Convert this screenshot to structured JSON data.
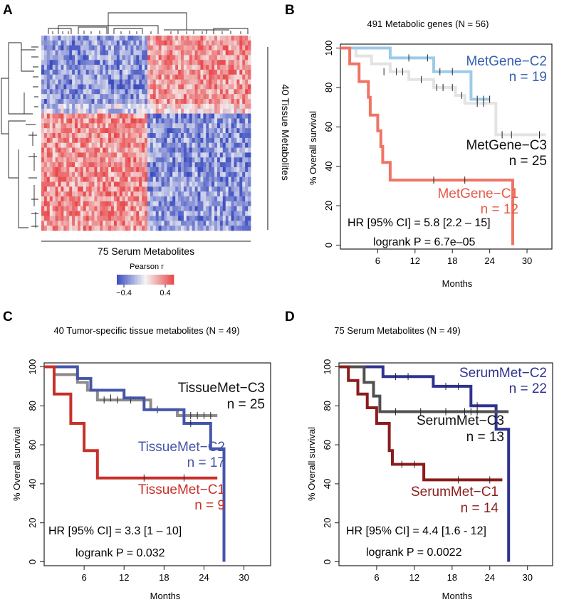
{
  "panel_labels": {
    "a": "A",
    "b": "B",
    "c": "C",
    "d": "D"
  },
  "heatmap": {
    "col_label": "75 Serum Metabolites",
    "row_label": "40 Tissue Metabolites",
    "legend_title": "Pearson r",
    "legend_ticks": [
      "−0.4",
      "0.4"
    ],
    "rows": 40,
    "cols": 75,
    "row_split": 16,
    "col_split": 38,
    "color_low": "#3b4cc0",
    "color_mid": "#f5f5f5",
    "color_high": "#e8474a"
  },
  "chart_data": [
    {
      "type": "line",
      "panel": "B",
      "title": "491 Metabolic genes  (N = 56)",
      "xlabel": "Months",
      "ylabel": "% Overall survival",
      "xlim": [
        0,
        34
      ],
      "ylim": [
        -2,
        102
      ],
      "xticks": [
        6,
        12,
        18,
        24,
        30
      ],
      "yticks": [
        0,
        20,
        40,
        60,
        80,
        100
      ],
      "hr_text": "HR [95% CI] = 5.8 [2.2 – 15]",
      "p_text": "logrank P = 6.7e–05",
      "series": [
        {
          "name": "MetGene−C3",
          "n_label": "n = 25",
          "color": "#e3e3e3",
          "label_color": "#111111",
          "steps": [
            [
              0,
              100
            ],
            [
              2.5,
              96
            ],
            [
              5,
              92
            ],
            [
              8,
              88
            ],
            [
              11,
              84
            ],
            [
              15,
              80
            ],
            [
              18.5,
              76
            ],
            [
              20,
              72
            ],
            [
              25,
              56
            ],
            [
              33,
              56
            ]
          ],
          "censors": [
            [
              7,
              88
            ],
            [
              9,
              88
            ],
            [
              10,
              88
            ],
            [
              13,
              84
            ],
            [
              15.5,
              80
            ],
            [
              16.5,
              80
            ],
            [
              18,
              80
            ],
            [
              19.5,
              76
            ],
            [
              22,
              72
            ],
            [
              23,
              72
            ],
            [
              26,
              56
            ],
            [
              27.5,
              56
            ],
            [
              32,
              56
            ]
          ]
        },
        {
          "name": "MetGene−C2",
          "n_label": "n = 19",
          "color": "#9ccbe8",
          "label_color": "#3660b0",
          "steps": [
            [
              0,
              100
            ],
            [
              8,
              95
            ],
            [
              15,
              88
            ],
            [
              21,
              74
            ],
            [
              24,
              74
            ]
          ],
          "censors": [
            [
              11,
              95
            ],
            [
              14,
              95
            ],
            [
              16,
              88
            ],
            [
              18,
              88
            ],
            [
              22,
              74
            ],
            [
              23,
              74
            ],
            [
              24,
              74
            ]
          ]
        },
        {
          "name": "MetGene−C1",
          "n_label": "n = 12",
          "color": "#f07464",
          "label_color": "#e55a48",
          "steps": [
            [
              0,
              100
            ],
            [
              1.5,
              92
            ],
            [
              3,
              83
            ],
            [
              4.5,
              75
            ],
            [
              4.8,
              66
            ],
            [
              6,
              58
            ],
            [
              6.5,
              50
            ],
            [
              6.8,
              42
            ],
            [
              8,
              33
            ],
            [
              27.7,
              33
            ],
            [
              27.7,
              0
            ]
          ],
          "censors": [
            [
              15,
              33
            ],
            [
              20,
              33
            ]
          ]
        }
      ]
    },
    {
      "type": "line",
      "panel": "C",
      "title": "40 Tumor-specific tissue metabolites (N = 49)",
      "xlabel": "Months",
      "ylabel": "% Overall survival",
      "xlim": [
        0,
        34
      ],
      "ylim": [
        -2,
        102
      ],
      "xticks": [
        6,
        12,
        18,
        24,
        30
      ],
      "yticks": [
        0,
        20,
        40,
        60,
        80,
        100
      ],
      "hr_text": "HR [95% CI] = 3.3 [1 – 10]",
      "p_text": "logrank P = 0.032",
      "series": [
        {
          "name": "TissueMet−C3",
          "n_label": "n = 25",
          "color": "#8c8c8c",
          "label_color": "#111111",
          "steps": [
            [
              0,
              100
            ],
            [
              1.5,
              96
            ],
            [
              5,
              92
            ],
            [
              6.5,
              88
            ],
            [
              8,
              83
            ],
            [
              16,
              78
            ],
            [
              20,
              75
            ],
            [
              26,
              75
            ]
          ],
          "censors": [
            [
              9,
              83
            ],
            [
              11,
              83
            ],
            [
              13,
              83
            ],
            [
              17,
              78
            ],
            [
              21,
              75
            ],
            [
              22,
              75
            ],
            [
              23,
              75
            ],
            [
              24,
              75
            ],
            [
              25,
              75
            ]
          ]
        },
        {
          "name": "TissueMet−C2",
          "n_label": "n = 17",
          "color": "#4555a8",
          "label_color": "#4555a8",
          "steps": [
            [
              0,
              100
            ],
            [
              5,
              94
            ],
            [
              7,
              88
            ],
            [
              12,
              84
            ],
            [
              15,
              78
            ],
            [
              21,
              71
            ],
            [
              25,
              58
            ],
            [
              27,
              58
            ],
            [
              27,
              0
            ]
          ],
          "censors": [
            [
              10,
              84
            ],
            [
              22,
              71
            ]
          ]
        },
        {
          "name": "TissueMet−C1",
          "n_label": "n = 9",
          "color": "#c8302a",
          "label_color": "#c8302a",
          "steps": [
            [
              0,
              100
            ],
            [
              1.5,
              86
            ],
            [
              4,
              71
            ],
            [
              6,
              57
            ],
            [
              8,
              43
            ],
            [
              26,
              43
            ]
          ],
          "censors": [
            [
              15,
              43
            ],
            [
              21,
              43
            ]
          ]
        }
      ]
    },
    {
      "type": "line",
      "panel": "D",
      "title": "75 Serum Metabolites (N = 49)",
      "xlabel": "Months",
      "ylabel": "% Overall survival",
      "xlim": [
        0,
        34
      ],
      "ylim": [
        -2,
        102
      ],
      "xticks": [
        6,
        12,
        18,
        24,
        30
      ],
      "yticks": [
        0,
        20,
        40,
        60,
        80,
        100
      ],
      "hr_text": "HR [95% CI] = 4.4 [1.6 - 12]",
      "p_text": "logrank P = 0.0022",
      "series": [
        {
          "name": "SerumMet−C2",
          "n_label": "n = 22",
          "color": "#2f3390",
          "label_color": "#2f3390",
          "steps": [
            [
              0,
              100
            ],
            [
              7,
              95
            ],
            [
              15,
              90
            ],
            [
              21,
              80
            ],
            [
              25,
              68
            ],
            [
              27,
              68
            ],
            [
              27,
              0
            ]
          ],
          "censors": [
            [
              9,
              95
            ],
            [
              11,
              95
            ],
            [
              17,
              90
            ],
            [
              19,
              90
            ],
            [
              22,
              80
            ]
          ]
        },
        {
          "name": "SerumMet−C3",
          "n_label": "n = 13",
          "color": "#505050",
          "label_color": "#111111",
          "steps": [
            [
              0,
              100
            ],
            [
              4,
              92
            ],
            [
              5.5,
              85
            ],
            [
              6.5,
              77
            ],
            [
              27,
              77
            ]
          ],
          "censors": [
            [
              9,
              77
            ],
            [
              13,
              77
            ],
            [
              17,
              77
            ],
            [
              20,
              77
            ],
            [
              21,
              77
            ],
            [
              22,
              77
            ]
          ]
        },
        {
          "name": "SerumMet−C1",
          "n_label": "n = 14",
          "color": "#8c1c1c",
          "label_color": "#8c1c1c",
          "steps": [
            [
              0,
              100
            ],
            [
              1.5,
              93
            ],
            [
              3,
              86
            ],
            [
              4.5,
              79
            ],
            [
              6,
              71
            ],
            [
              8,
              57
            ],
            [
              8.5,
              50
            ],
            [
              13.5,
              42
            ],
            [
              26,
              42
            ]
          ],
          "censors": [
            [
              10,
              50
            ],
            [
              12,
              50
            ],
            [
              19,
              42
            ],
            [
              24,
              42
            ]
          ]
        }
      ]
    }
  ]
}
